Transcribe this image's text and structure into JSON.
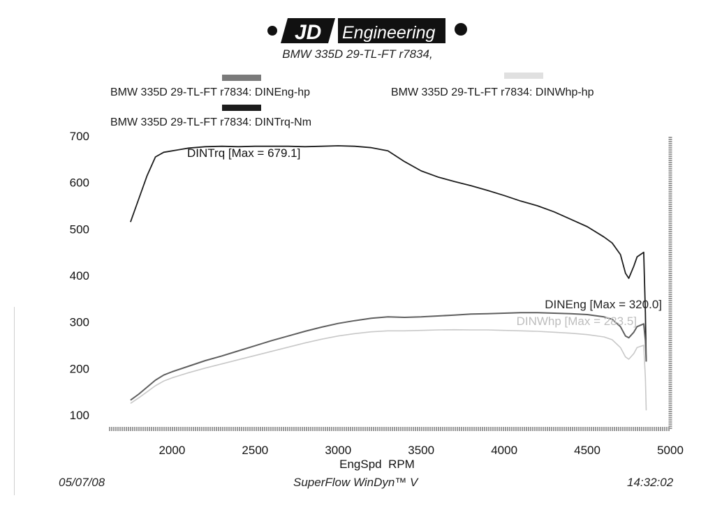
{
  "header": {
    "logo_text_left": "JD",
    "logo_text_right": "Engineering",
    "subtitle": "BMW 335D 29-TL-FT r7834,"
  },
  "legend": [
    {
      "label": "BMW 335D 29-TL-FT r7834: DINEng-hp",
      "color": "#7a7a7a"
    },
    {
      "label": "BMW 335D 29-TL-FT r7834: DINWhp-hp",
      "color": "#d9d9d9"
    },
    {
      "label": "BMW 335D 29-TL-FT r7834: DINTrq-Nm",
      "color": "#1c1c1c"
    }
  ],
  "chart_data": {
    "type": "line",
    "xlabel": "EngSpd  RPM",
    "ylabel": "",
    "xlim": [
      1620,
      5000
    ],
    "ylim": [
      70,
      700
    ],
    "x_ticks": [
      "2000",
      "2500",
      "3000",
      "3500",
      "4000",
      "4500",
      "5000"
    ],
    "y_ticks": [
      "100",
      "200",
      "300",
      "400",
      "500",
      "600",
      "700"
    ],
    "grid": false,
    "series": [
      {
        "name": "DINTrq-Nm",
        "color": "#1c1c1c",
        "annotation": "DINTrq [Max = 679.1]",
        "x": [
          1750,
          1800,
          1850,
          1900,
          1950,
          2000,
          2100,
          2200,
          2300,
          2400,
          2500,
          2600,
          2700,
          2800,
          2900,
          3000,
          3100,
          3200,
          3300,
          3400,
          3500,
          3600,
          3700,
          3800,
          3900,
          4000,
          4100,
          4200,
          4300,
          4400,
          4500,
          4600,
          4650,
          4700,
          4730,
          4750,
          4780,
          4800,
          4840,
          4850,
          4855
        ],
        "values": [
          515,
          565,
          615,
          655,
          665,
          668,
          674,
          677,
          678,
          677,
          678,
          678,
          678,
          677,
          678,
          679,
          678,
          675,
          668,
          645,
          625,
          612,
          602,
          593,
          583,
          572,
          560,
          550,
          537,
          521,
          505,
          483,
          470,
          445,
          405,
          394,
          420,
          440,
          450,
          320,
          215
        ]
      },
      {
        "name": "DINEng-hp",
        "color": "#5e5e5e",
        "annotation": "DINEng [Max = 320.0]",
        "x": [
          1750,
          1800,
          1850,
          1900,
          1950,
          2000,
          2100,
          2200,
          2300,
          2400,
          2500,
          2600,
          2700,
          2800,
          2900,
          3000,
          3100,
          3200,
          3300,
          3400,
          3500,
          3600,
          3700,
          3800,
          3900,
          4000,
          4100,
          4200,
          4300,
          4400,
          4500,
          4600,
          4650,
          4700,
          4730,
          4750,
          4780,
          4800,
          4840,
          4850,
          4855
        ],
        "values": [
          132,
          145,
          160,
          175,
          186,
          193,
          205,
          217,
          227,
          238,
          249,
          260,
          270,
          280,
          289,
          297,
          303,
          308,
          311,
          310,
          311,
          313,
          315,
          317,
          318,
          319,
          320,
          320,
          319,
          318,
          316,
          311,
          306,
          290,
          270,
          266,
          278,
          290,
          296,
          260,
          215
        ]
      },
      {
        "name": "DINWhp-hp",
        "color": "#c8c8c8",
        "annotation": "DINWhp [Max = 283.5]",
        "x": [
          1750,
          1800,
          1850,
          1900,
          1950,
          2000,
          2100,
          2200,
          2300,
          2400,
          2500,
          2600,
          2700,
          2800,
          2900,
          3000,
          3100,
          3200,
          3300,
          3400,
          3500,
          3600,
          3700,
          3800,
          3900,
          4000,
          4100,
          4200,
          4300,
          4400,
          4500,
          4600,
          4650,
          4700,
          4730,
          4750,
          4780,
          4800,
          4840,
          4850,
          4855
        ],
        "values": [
          125,
          137,
          150,
          163,
          173,
          180,
          191,
          201,
          210,
          219,
          228,
          237,
          246,
          255,
          263,
          270,
          275,
          279,
          281,
          281,
          282,
          283,
          283.5,
          283,
          283,
          282,
          281,
          280,
          278,
          276,
          273,
          268,
          262,
          245,
          225,
          220,
          232,
          245,
          250,
          180,
          110
        ]
      }
    ]
  },
  "footer": {
    "date": "05/07/08",
    "software": "SuperFlow WinDyn™ V",
    "time": "14:32:02"
  }
}
